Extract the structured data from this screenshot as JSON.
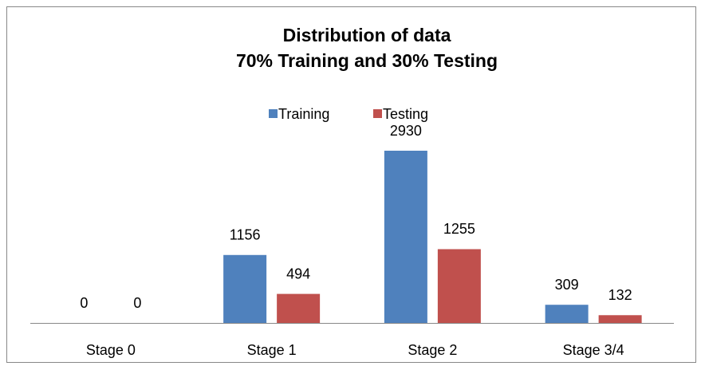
{
  "chart_data": {
    "type": "bar",
    "title": "Distribution of data",
    "subtitle": "70% Training and 30% Testing",
    "categories": [
      "Stage 0",
      "Stage 1",
      "Stage 2",
      "Stage 3/4"
    ],
    "series": [
      {
        "name": "Training",
        "color": "#4f81bd",
        "values": [
          0,
          1156,
          2930,
          309
        ]
      },
      {
        "name": "Testing",
        "color": "#c0504d",
        "values": [
          0,
          494,
          1255,
          132
        ]
      }
    ],
    "legend": "top"
  }
}
